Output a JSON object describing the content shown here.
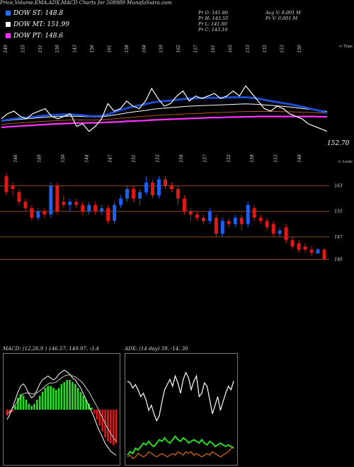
{
  "header": {
    "title": "Price,Volume,EMA,ADX,MACD Charts for 508989 MunafaSutra.com",
    "dow": [
      {
        "label": "DOW ST: 148.8",
        "color": "#2a6ff5"
      },
      {
        "label": "DOW MT: 151.99",
        "color": "#ffffff"
      },
      {
        "label": "DOW PT: 148.6",
        "color": "#ff33ff"
      }
    ],
    "stats": {
      "pr_o": "Pr O: 141.80",
      "pr_h": "Pr H: 143.55",
      "pr_l": "Pr L: 141.80",
      "pr_c": "Pr C: 143.10",
      "avg_v": "Avg V: 0.001 M",
      "pr_v": "Pr V: 0.001 M"
    }
  },
  "chart_data": [
    {
      "type": "line",
      "name": "price-ema-panel",
      "top_label": "< Tops",
      "bottom_label": "< Lows",
      "last_price_label": "152.70",
      "top_tick_labels": [
        "149",
        "155",
        "151",
        "150",
        "143",
        "156",
        "161",
        "158",
        "164",
        "159",
        "162",
        "157",
        "161",
        "165",
        "153",
        "155",
        "153",
        "150"
      ],
      "low_tick_labels": [
        "146",
        "149",
        "150",
        "144",
        "147",
        "151",
        "153",
        "154",
        "157",
        "152",
        "158",
        "153",
        "148"
      ],
      "series": [
        {
          "name": "Close",
          "color": "#ffffff",
          "values": [
            149,
            151,
            152,
            150,
            149,
            151,
            152,
            153,
            150,
            149,
            150,
            151,
            146,
            147,
            144,
            146,
            149,
            155,
            152,
            153,
            156,
            154,
            153,
            156,
            161,
            157,
            154,
            155,
            158,
            160,
            156,
            158,
            157,
            158,
            159,
            157,
            158,
            160,
            158,
            162,
            159,
            156,
            153,
            152,
            154,
            153,
            151,
            150,
            149,
            147,
            146,
            145,
            144
          ]
        },
        {
          "name": "Series 2",
          "color": "#1e4fd8",
          "values": [
            148.2,
            148.6,
            149.0,
            149.3,
            149.4,
            149.7,
            150.0,
            150.3,
            150.5,
            150.6,
            150.7,
            150.7,
            150.6,
            150.4,
            150.1,
            150.0,
            150.2,
            150.8,
            151.6,
            152.4,
            153.2,
            153.8,
            154.3,
            154.8,
            155.4,
            155.8,
            156.0,
            156.2,
            156.5,
            156.8,
            157.0,
            157.1,
            157.2,
            157.3,
            157.3,
            157.3,
            157.4,
            157.5,
            157.5,
            157.5,
            157.3,
            157.0,
            156.5,
            156.0,
            155.6,
            155.2,
            154.8,
            154.3,
            153.8,
            153.2,
            152.6,
            152.0,
            151.4
          ]
        },
        {
          "name": "Series 3",
          "color": "#ffffff",
          "values": [
            148.0,
            148.3,
            148.6,
            148.8,
            149.0,
            149.2,
            149.4,
            149.6,
            149.8,
            149.9,
            150.0,
            150.0,
            150.0,
            149.9,
            149.8,
            149.7,
            149.8,
            150.1,
            150.5,
            150.9,
            151.3,
            151.7,
            152.0,
            152.3,
            152.7,
            153.0,
            153.2,
            153.4,
            153.6,
            153.8,
            154.0,
            154.1,
            154.2,
            154.3,
            154.4,
            154.5,
            154.6,
            154.7,
            154.8,
            154.9,
            154.8,
            154.7,
            154.5,
            154.3,
            154.1,
            153.9,
            153.7,
            153.4,
            153.1,
            152.8,
            152.5,
            152.2,
            151.9
          ]
        },
        {
          "name": "Series 4",
          "color": "#aa5a1e",
          "values": [
            146.8,
            147.0,
            147.2,
            147.4,
            147.5,
            147.7,
            147.9,
            148.0,
            148.2,
            148.3,
            148.4,
            148.5,
            148.5,
            148.5,
            148.5,
            148.5,
            148.6,
            148.8,
            149.0,
            149.2,
            149.4,
            149.6,
            149.8,
            150.0,
            150.2,
            150.4,
            150.5,
            150.6,
            150.7,
            150.9,
            151.0,
            151.1,
            151.2,
            151.3,
            151.4,
            151.5,
            151.6,
            151.7,
            151.8,
            151.9,
            151.9,
            151.9,
            151.9,
            151.9,
            151.9,
            151.8,
            151.8,
            151.7,
            151.6,
            151.5,
            151.4,
            151.3,
            151.2
          ]
        },
        {
          "name": "Series 5",
          "color": "#ff33ff",
          "values": [
            145.6,
            145.8,
            146.0,
            146.1,
            146.3,
            146.4,
            146.6,
            146.7,
            146.9,
            147.0,
            147.1,
            147.2,
            147.3,
            147.3,
            147.4,
            147.4,
            147.5,
            147.6,
            147.7,
            147.8,
            148.0,
            148.1,
            148.2,
            148.3,
            148.5,
            148.6,
            148.7,
            148.8,
            148.9,
            149.0,
            149.1,
            149.2,
            149.3,
            149.4,
            149.5,
            149.5,
            149.6,
            149.7,
            149.7,
            149.8,
            149.8,
            149.9,
            149.9,
            149.9,
            149.9,
            149.9,
            149.9,
            149.9,
            149.9,
            149.9,
            149.9,
            149.8,
            149.8
          ]
        }
      ]
    },
    {
      "type": "candlestick",
      "name": "candle-panel",
      "ylim": [
        137,
        168
      ],
      "levels": [
        {
          "value": 163,
          "label": "163"
        },
        {
          "value": 155,
          "label": "155"
        },
        {
          "value": 147,
          "label": "147"
        },
        {
          "value": 140,
          "label": "140"
        }
      ],
      "candles": [
        {
          "o": 166,
          "c": 161,
          "h": 167,
          "l": 160
        },
        {
          "o": 163,
          "c": 162,
          "h": 164,
          "l": 160
        },
        {
          "o": 161,
          "c": 158,
          "h": 162,
          "l": 157
        },
        {
          "o": 158,
          "c": 156,
          "h": 159,
          "l": 155
        },
        {
          "o": 156,
          "c": 153,
          "h": 157,
          "l": 152
        },
        {
          "o": 153,
          "c": 155,
          "h": 156,
          "l": 152
        },
        {
          "o": 155,
          "c": 154,
          "h": 156,
          "l": 153
        },
        {
          "o": 154,
          "c": 163,
          "h": 164,
          "l": 153
        },
        {
          "o": 163,
          "c": 155,
          "h": 164,
          "l": 154
        },
        {
          "o": 158,
          "c": 157,
          "h": 160,
          "l": 156
        },
        {
          "o": 157,
          "c": 158,
          "h": 159,
          "l": 155
        },
        {
          "o": 158,
          "c": 157,
          "h": 159,
          "l": 156
        },
        {
          "o": 157,
          "c": 155,
          "h": 158,
          "l": 154
        },
        {
          "o": 155,
          "c": 157,
          "h": 158,
          "l": 154
        },
        {
          "o": 157,
          "c": 155,
          "h": 158,
          "l": 154
        },
        {
          "o": 155,
          "c": 156,
          "h": 157,
          "l": 154
        },
        {
          "o": 156,
          "c": 152,
          "h": 157,
          "l": 151
        },
        {
          "o": 152,
          "c": 157,
          "h": 158,
          "l": 151
        },
        {
          "o": 157,
          "c": 159,
          "h": 160,
          "l": 156
        },
        {
          "o": 159,
          "c": 162,
          "h": 163,
          "l": 158
        },
        {
          "o": 162,
          "c": 159,
          "h": 163,
          "l": 158
        },
        {
          "o": 159,
          "c": 161,
          "h": 162,
          "l": 157
        },
        {
          "o": 161,
          "c": 164,
          "h": 166,
          "l": 160
        },
        {
          "o": 164,
          "c": 160,
          "h": 165,
          "l": 159
        },
        {
          "o": 160,
          "c": 165,
          "h": 166,
          "l": 159
        },
        {
          "o": 165,
          "c": 163,
          "h": 166,
          "l": 162
        },
        {
          "o": 163,
          "c": 162,
          "h": 164,
          "l": 161
        },
        {
          "o": 162,
          "c": 159,
          "h": 163,
          "l": 157
        },
        {
          "o": 159,
          "c": 155,
          "h": 160,
          "l": 154
        },
        {
          "o": 155,
          "c": 154,
          "h": 156,
          "l": 152
        },
        {
          "o": 154,
          "c": 153,
          "h": 155,
          "l": 152
        },
        {
          "o": 153,
          "c": 152,
          "h": 154,
          "l": 151
        },
        {
          "o": 152,
          "c": 155,
          "h": 156,
          "l": 151
        },
        {
          "o": 153,
          "c": 148,
          "h": 154,
          "l": 147
        },
        {
          "o": 148,
          "c": 152,
          "h": 153,
          "l": 147
        },
        {
          "o": 152,
          "c": 151,
          "h": 153,
          "l": 150
        },
        {
          "o": 151,
          "c": 153,
          "h": 154,
          "l": 150
        },
        {
          "o": 153,
          "c": 151,
          "h": 154,
          "l": 149
        },
        {
          "o": 151,
          "c": 157,
          "h": 158,
          "l": 150
        },
        {
          "o": 156,
          "c": 153,
          "h": 157,
          "l": 152
        },
        {
          "o": 153,
          "c": 152,
          "h": 154,
          "l": 151
        },
        {
          "o": 152,
          "c": 150,
          "h": 153,
          "l": 149
        },
        {
          "o": 151,
          "c": 148,
          "h": 152,
          "l": 147
        },
        {
          "o": 148,
          "c": 149,
          "h": 150,
          "l": 147
        },
        {
          "o": 150,
          "c": 146,
          "h": 151,
          "l": 145
        },
        {
          "o": 146,
          "c": 144,
          "h": 147,
          "l": 143
        },
        {
          "o": 145,
          "c": 143,
          "h": 146,
          "l": 142
        },
        {
          "o": 144,
          "c": 143,
          "h": 145,
          "l": 142
        },
        {
          "o": 143,
          "c": 142,
          "h": 144,
          "l": 141
        },
        {
          "o": 141.8,
          "c": 143.1,
          "h": 143.55,
          "l": 141.8
        },
        {
          "o": 143,
          "c": 140,
          "h": 143.5,
          "l": 139.5
        }
      ]
    },
    {
      "type": "bar",
      "name": "macd-panel",
      "label": "MACD: (12,26,9 ) 146.57, 149.97, -3.4",
      "ylim": [
        -5,
        5
      ],
      "histogram": [
        -0.6,
        -0.4,
        -0.2,
        0.4,
        1.2,
        1.6,
        1.4,
        1.0,
        0.6,
        0.4,
        0.6,
        1.0,
        1.4,
        1.8,
        2.2,
        2.4,
        2.4,
        2.2,
        2.0,
        2.2,
        2.6,
        2.8,
        3.0,
        3.0,
        2.8,
        2.6,
        2.2,
        1.8,
        1.4,
        1.0,
        0.6,
        0.2,
        -0.4,
        -1.0,
        -1.6,
        -2.2,
        -2.8,
        -3.2,
        -3.4,
        -3.6,
        -3.4
      ],
      "series": [
        {
          "name": "MACD",
          "color": "#ffffff",
          "values": [
            -1.0,
            -0.5,
            0.2,
            1.0,
            1.8,
            2.4,
            2.6,
            2.2,
            1.6,
            1.2,
            1.4,
            2.0,
            2.6,
            3.0,
            3.2,
            3.4,
            3.2,
            3.0,
            3.2,
            3.6,
            3.8,
            4.0,
            3.8,
            3.6,
            3.2,
            3.0,
            2.6,
            2.2,
            1.6,
            1.0,
            0.4,
            -0.2,
            -0.8,
            -1.6,
            -2.2,
            -2.8,
            -3.4,
            -3.8,
            -4.2,
            -4.4,
            -4.6
          ]
        },
        {
          "name": "Signal",
          "color": "#cccccc",
          "values": [
            -0.4,
            -0.2,
            0.1,
            0.5,
            0.9,
            1.3,
            1.6,
            1.7,
            1.7,
            1.6,
            1.6,
            1.7,
            1.9,
            2.1,
            2.4,
            2.6,
            2.7,
            2.7,
            2.8,
            3.0,
            3.2,
            3.4,
            3.5,
            3.5,
            3.4,
            3.3,
            3.1,
            2.9,
            2.6,
            2.2,
            1.8,
            1.3,
            0.8,
            0.3,
            -0.3,
            -0.8,
            -1.4,
            -1.9,
            -2.4,
            -2.8,
            -3.2
          ]
        }
      ]
    },
    {
      "type": "line",
      "name": "adx-panel",
      "label": "ADX: (14 day) 39, -14, 30",
      "ylim": [
        0,
        60
      ],
      "series": [
        {
          "name": "+DI",
          "color": "#ffffff",
          "values": [
            47,
            46,
            43,
            45,
            42,
            38,
            40,
            36,
            30,
            33,
            28,
            24,
            27,
            35,
            42,
            45,
            48,
            44,
            50,
            46,
            40,
            48,
            52,
            49,
            42,
            47,
            50,
            38,
            40,
            46,
            44,
            36,
            28,
            33,
            38,
            30,
            35,
            40,
            44,
            42,
            47
          ]
        },
        {
          "name": "ADX",
          "color": "#22dd22",
          "values": [
            4,
            6,
            5,
            8,
            7,
            9,
            11,
            10,
            12,
            10,
            9,
            11,
            13,
            12,
            14,
            12,
            11,
            13,
            15,
            13,
            12,
            14,
            13,
            11,
            12,
            13,
            12,
            11,
            13,
            11,
            10,
            12,
            11,
            9,
            10,
            11,
            10,
            9,
            10,
            9,
            8
          ]
        },
        {
          "name": "-DI",
          "color": "#e06a10",
          "values": [
            3,
            4,
            2,
            3,
            5,
            4,
            3,
            4,
            6,
            5,
            4,
            3,
            4,
            5,
            4,
            3,
            4,
            5,
            4,
            6,
            5,
            4,
            6,
            5,
            6,
            4,
            5,
            4,
            3,
            4,
            5,
            4,
            6,
            5,
            4,
            3,
            4,
            5,
            6,
            8,
            9
          ]
        }
      ]
    }
  ]
}
